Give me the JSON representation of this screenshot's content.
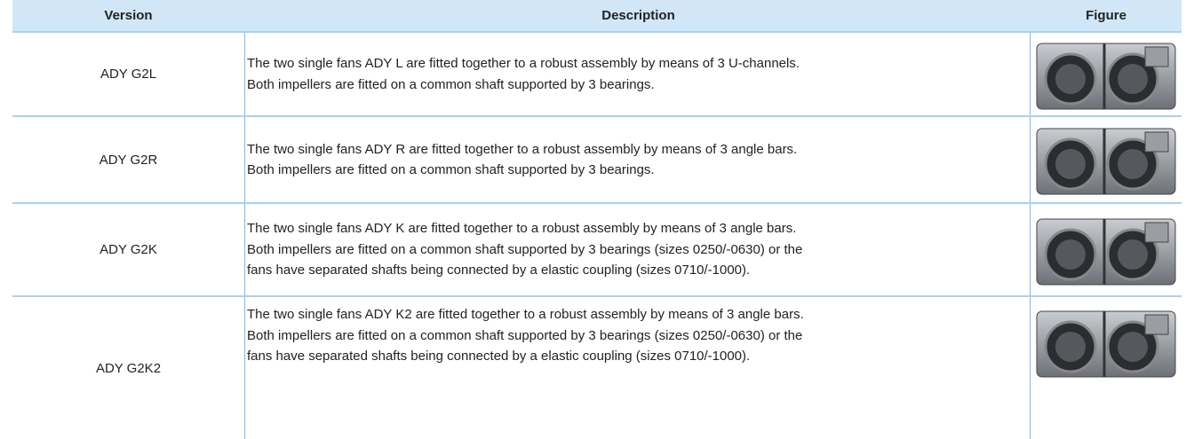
{
  "table": {
    "header": [
      "Version",
      "Description",
      "Figure"
    ],
    "rows": [
      {
        "version": "ADY G2L",
        "description": [
          "The two single fans ADY L are fitted together to a robust assembly by means of 3 U-channels.",
          "Both impellers are fitted on a common shaft supported by 3 bearings."
        ]
      },
      {
        "version": "ADY G2R",
        "description": [
          "The two single fans ADY R are fitted together to a robust assembly by means of 3 angle bars.",
          "Both impellers are fitted on a common shaft supported by 3 bearings."
        ]
      },
      {
        "version": "ADY G2K",
        "description": [
          "The two single fans ADY K are fitted together to a robust assembly by means of 3 angle bars.",
          "Both impellers are fitted on a common shaft supported by 3 bearings (sizes 0250/-0630) or the",
          "fans have separated shafts being connected by a elastic coupling (sizes 0710/-1000)."
        ]
      },
      {
        "version": "ADY G2K2",
        "description": [
          "The two single fans ADY K2 are fitted together to a robust assembly by means of 3 angle bars.",
          "Both impellers are fitted on a common shaft supported by 3 bearings (sizes 0250/-0630) or the",
          "fans have separated shafts being connected by a elastic coupling (sizes 0710/-1000)."
        ]
      }
    ]
  }
}
